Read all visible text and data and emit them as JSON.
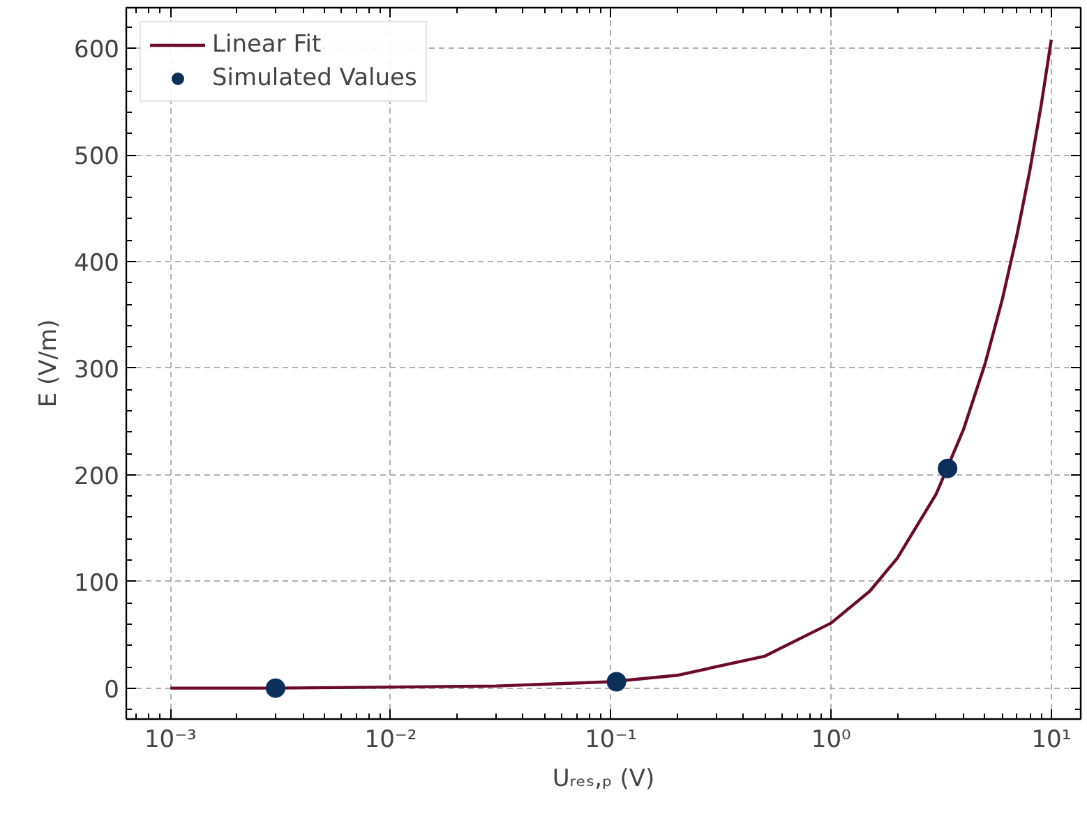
{
  "chart_data": {
    "type": "scatter",
    "xlabel": "Uᵣₑₛ,ₚ (V)",
    "ylabel": "E (V/m)",
    "log": "x",
    "grid": true,
    "legend": "top left",
    "xlim": [
      0.00063,
      13.6
    ],
    "ylim": [
      -29,
      638
    ],
    "xticks": [
      {
        "value": 0.001,
        "label": "10⁻³"
      },
      {
        "value": 0.01,
        "label": "10⁻²"
      },
      {
        "value": 0.1,
        "label": "10⁻¹"
      },
      {
        "value": 1,
        "label": "10⁰"
      },
      {
        "value": 10,
        "label": "10¹"
      }
    ],
    "yticks": [
      0,
      100,
      200,
      300,
      400,
      500,
      600
    ],
    "series": [
      {
        "name": "Linear Fit",
        "type": "line",
        "color": "#6b0a2c",
        "line_style": "solid",
        "marker": "none",
        "x": [
          0.001,
          0.003,
          0.01,
          0.03,
          0.1,
          0.2,
          0.5,
          1,
          1.5,
          2,
          3,
          4,
          5,
          6,
          7,
          8,
          9,
          10
        ],
        "values": [
          0,
          0,
          1,
          2,
          6,
          12,
          30,
          61,
          91,
          122,
          182,
          243,
          304,
          365,
          426,
          486,
          547,
          608
        ]
      },
      {
        "name": "Simulated Values",
        "color": "#0c2f5a",
        "marker": "circle",
        "x": [
          0.003,
          0.106,
          3.38
        ],
        "values": [
          0,
          6,
          206
        ]
      }
    ]
  }
}
